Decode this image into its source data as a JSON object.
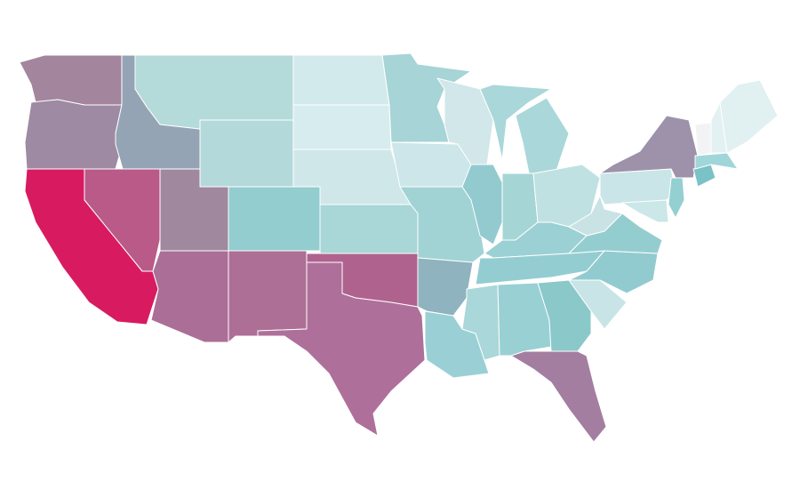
{
  "map": {
    "regions": [
      {
        "color": "#a3869e"
      },
      {
        "color": "#9e8aa2"
      },
      {
        "color": "#94a4b4"
      },
      {
        "color": "#b5dada"
      },
      {
        "color": "#d3eaec"
      },
      {
        "color": "#d7ecee"
      },
      {
        "color": "#b4d9da"
      },
      {
        "color": "#cfe7e8"
      },
      {
        "color": "#93cdcf"
      },
      {
        "color": "#a9d6d7"
      },
      {
        "color": "#b95a88"
      },
      {
        "color": "#d81b60"
      },
      {
        "color": "#a0889f"
      },
      {
        "color": "#ab6f97"
      },
      {
        "color": "#ad6f96"
      },
      {
        "color": "#b0628e"
      },
      {
        "color": "#ae709a"
      },
      {
        "color": "#a7d4d6"
      },
      {
        "color": "#cde6e9"
      },
      {
        "color": "#a1d3d5"
      },
      {
        "color": "#8fb3bf"
      },
      {
        "color": "#9ad0d5"
      },
      {
        "color": "#d1e7ea"
      },
      {
        "color": "#93cad0"
      },
      {
        "color": "#aad7d9"
      },
      {
        "color": "#a6d5d6"
      },
      {
        "color": "#c0e1e2"
      },
      {
        "color": "#9bd0d4"
      },
      {
        "color": "#94cdd1"
      },
      {
        "color": "#a9d7da"
      },
      {
        "color": "#99d0d4"
      },
      {
        "color": "#8ac8c9"
      },
      {
        "color": "#a37ea0"
      },
      {
        "color": "#c9e4e6"
      },
      {
        "color": "#92cbcf"
      },
      {
        "color": "#94cdd0"
      },
      {
        "color": "#c9e3e5"
      },
      {
        "color": "#cae5e8"
      },
      {
        "color": "#9e92aa"
      },
      {
        "color": "#94cfd2"
      },
      {
        "color": "#cbe7e8"
      },
      {
        "color": "#7bc2c7"
      },
      {
        "color": "#a0d6da"
      },
      {
        "color": "#f1f3f4"
      },
      {
        "color": "#e3f1f2"
      },
      {
        "color": "#e1f0f1"
      }
    ]
  }
}
